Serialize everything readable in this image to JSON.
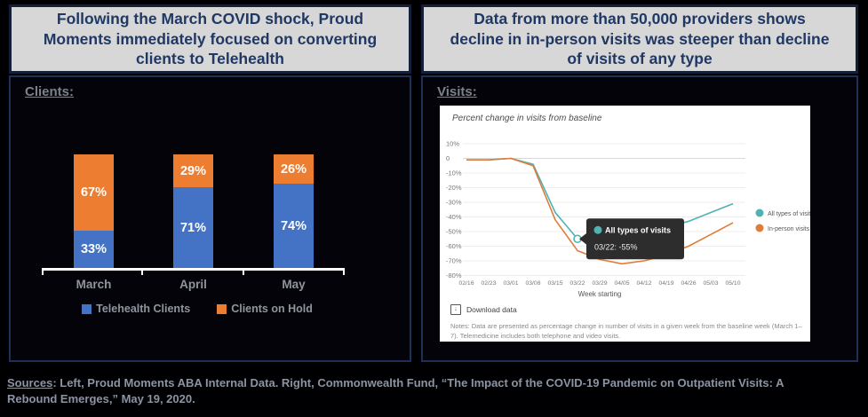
{
  "left_panel": {
    "title": "Following the March COVID shock, Proud Moments  immediately focused on converting clients to Telehealth",
    "section_label": "Clients:"
  },
  "right_panel": {
    "title": "Data from more than 50,000 providers shows decline in in-person visits was steeper than decline of visits of any type",
    "section_label": "Visits:",
    "download_label": "Download data",
    "download_icon": "↓",
    "notes": "Notes: Data are presented as percentage change in number of visits in a given week from the baseline week (March 1–7). Telemedicine includes both telephone and video visits."
  },
  "footer": {
    "sources_label": "Sources",
    "sources_text": ": Left, Proud Moments ABA Internal Data.  Right, Commonwealth Fund, “The Impact of the COVID-19 Pandemic on Outpatient Visits: A Rebound Emerges,” May 19, 2020."
  },
  "colors": {
    "title_navy": "#1f3864",
    "telehealth_blue": "#4472c4",
    "hold_orange": "#ed7d31",
    "all_visits_teal": "#4fb3b3",
    "in_person_orange": "#e07c3a"
  },
  "chart_data": [
    {
      "type": "bar",
      "stacked": true,
      "title": "Clients:",
      "categories": [
        "March",
        "April",
        "May"
      ],
      "series": [
        {
          "name": "Telehealth Clients",
          "color": "#4472c4",
          "values": [
            33,
            71,
            74
          ]
        },
        {
          "name": "Clients on Hold",
          "color": "#ed7d31",
          "values": [
            67,
            29,
            26
          ]
        }
      ],
      "value_format": "percent",
      "ylim": [
        0,
        100
      ],
      "legend_position": "bottom"
    },
    {
      "type": "line",
      "title": "Percent change in visits from baseline",
      "x": [
        "02/16",
        "02/23",
        "03/01",
        "03/08",
        "03/15",
        "03/22",
        "03/29",
        "04/05",
        "04/12",
        "04/19",
        "04/26",
        "05/03",
        "05/10"
      ],
      "xlabel": "Week starting",
      "ylim": [
        -80,
        10
      ],
      "ytick_labels": [
        "10%",
        "0",
        "-10%",
        "-20%",
        "-30%",
        "-40%",
        "-50%",
        "-60%",
        "-70%",
        "-80%"
      ],
      "yticks": [
        10,
        0,
        -10,
        -20,
        -30,
        -40,
        -50,
        -60,
        -70,
        -80
      ],
      "grid": true,
      "legend_position": "right",
      "series": [
        {
          "name": "All types of visits",
          "color": "#4fb3b3",
          "values": [
            -1,
            -1,
            0,
            -4,
            -37,
            -55,
            -59,
            -57,
            -53,
            -47,
            -43,
            -37,
            -31
          ]
        },
        {
          "name": "In-person visits only",
          "color": "#e07c3a",
          "values": [
            -1,
            -1,
            0,
            -5,
            -42,
            -63,
            -69,
            -72,
            -70,
            -66,
            -60,
            -52,
            -44
          ]
        }
      ],
      "tooltip": {
        "series": "All types of visits",
        "x": "03/22",
        "x_index": 5,
        "value": -55,
        "title": "All types of visits",
        "text": "03/22: -55%"
      }
    }
  ]
}
